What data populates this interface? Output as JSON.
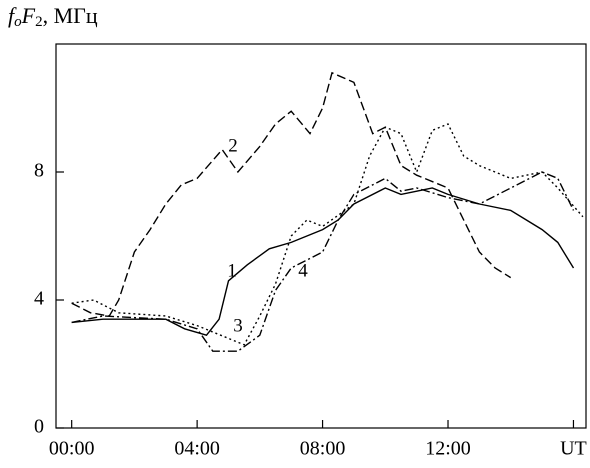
{
  "chart_data": {
    "type": "line",
    "y_label": [
      "f",
      "o",
      "F",
      "2",
      ", МГц"
    ],
    "xlim": [
      -0.5,
      16.4
    ],
    "ylim": [
      0,
      12
    ],
    "xticks": [
      {
        "value": 0,
        "label": "00:00"
      },
      {
        "value": 4,
        "label": "04:00"
      },
      {
        "value": 8,
        "label": "08:00"
      },
      {
        "value": 12,
        "label": "12:00"
      },
      {
        "value": 16,
        "label": "UT"
      }
    ],
    "yticks": [
      0,
      4,
      8
    ],
    "grid": false,
    "series": [
      {
        "name": "1",
        "color": "#000000",
        "dash": "solid",
        "x": [
          0,
          1,
          2,
          3,
          3.6,
          4.3,
          4.7,
          5,
          5.6,
          6.3,
          7,
          8,
          8.5,
          9,
          10,
          10.5,
          11,
          11.5,
          12,
          13,
          14,
          14.5,
          15,
          15.5,
          16
        ],
        "values": [
          3.3,
          3.4,
          3.4,
          3.4,
          3.1,
          2.9,
          3.4,
          4.6,
          5.1,
          5.6,
          5.8,
          6.2,
          6.5,
          7.0,
          7.5,
          7.3,
          7.4,
          7.5,
          7.3,
          7.0,
          6.8,
          6.5,
          6.2,
          5.8,
          5.0
        ]
      },
      {
        "name": "2",
        "color": "#000000",
        "dash": "dashed",
        "x": [
          0,
          0.6,
          1.2,
          1.5,
          2,
          2.5,
          3,
          3.5,
          4,
          4.8,
          5.3,
          6,
          6.5,
          7,
          7.6,
          8,
          8.3,
          9,
          9.6,
          10,
          10.5,
          11,
          12,
          12.5,
          13,
          13.5,
          14
        ],
        "values": [
          3.9,
          3.6,
          3.5,
          4.0,
          5.5,
          6.2,
          7.0,
          7.6,
          7.8,
          8.7,
          8.0,
          8.8,
          9.5,
          9.9,
          9.2,
          10.0,
          11.1,
          10.8,
          9.2,
          9.4,
          8.2,
          7.9,
          7.5,
          6.5,
          5.5,
          5.0,
          4.7
        ]
      },
      {
        "name": "3",
        "color": "#000000",
        "dash": "dotted",
        "x": [
          0,
          0.7,
          1.5,
          3,
          4,
          5,
          5.5,
          6,
          6.5,
          7,
          7.5,
          8,
          9,
          9.5,
          10,
          10.5,
          11,
          11.5,
          12,
          12.5,
          13,
          14,
          15,
          15.5,
          16.3
        ],
        "values": [
          3.9,
          4.0,
          3.6,
          3.5,
          3.2,
          2.8,
          2.6,
          3.5,
          4.5,
          6.0,
          6.5,
          6.3,
          7.0,
          8.5,
          9.4,
          9.2,
          8.0,
          9.3,
          9.5,
          8.5,
          8.2,
          7.8,
          8.0,
          7.5,
          6.6
        ]
      },
      {
        "name": "4",
        "color": "#000000",
        "dash": "dashdot",
        "x": [
          0,
          1,
          3,
          4,
          4.5,
          5.3,
          6,
          6.5,
          7,
          8,
          8.5,
          9,
          10,
          10.5,
          11,
          12,
          13,
          14,
          15,
          15.5,
          16
        ],
        "values": [
          3.3,
          3.5,
          3.4,
          3.1,
          2.4,
          2.4,
          2.9,
          4.3,
          5.0,
          5.5,
          6.5,
          7.3,
          7.8,
          7.4,
          7.5,
          7.2,
          7.0,
          7.5,
          8.0,
          7.8,
          6.8
        ]
      }
    ]
  }
}
